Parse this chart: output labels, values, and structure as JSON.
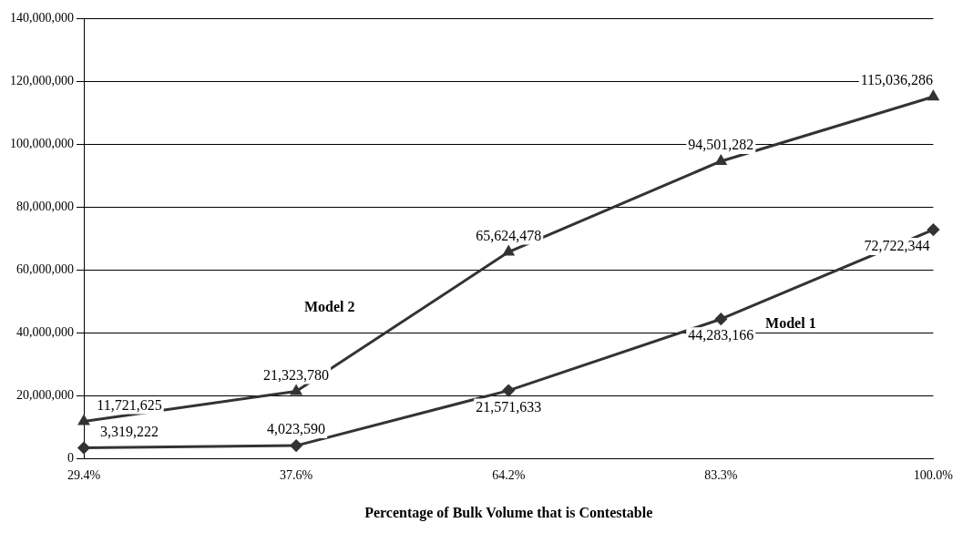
{
  "chart_data": {
    "type": "line",
    "xlabel": "Percentage of Bulk Volume that is Contestable",
    "categories": [
      "29.4%",
      "37.6%",
      "64.2%",
      "83.3%",
      "100.0%"
    ],
    "series": [
      {
        "name": "Model 1",
        "color": "#333333",
        "marker": "diamond",
        "values": [
          3319222,
          4023590,
          21571633,
          44283166,
          72722344
        ],
        "value_labels": [
          "3,319,222",
          "4,023,590",
          "21,571,633",
          "44,283,166",
          "72,722,344"
        ]
      },
      {
        "name": "Model 2",
        "color": "#333333",
        "marker": "triangle",
        "values": [
          11721625,
          21323780,
          65624478,
          94501282,
          115036286
        ],
        "value_labels": [
          "11,721,625",
          "21,323,780",
          "65,624,478",
          "94,501,282",
          "115,036,286"
        ]
      }
    ],
    "ylim": [
      0,
      140000000
    ],
    "yticks": [
      0,
      {
        "value": 20000000,
        "label": "20,000,000"
      },
      {
        "value": 40000000,
        "label": "40,000,000"
      },
      {
        "value": 60000000,
        "label": "60,000,000"
      },
      {
        "value": 80000000,
        "label": "80,000,000"
      },
      {
        "value": 100000000,
        "label": "100,000,000"
      },
      {
        "value": 120000000,
        "label": "120,000,000"
      },
      {
        "value": 140000000,
        "label": "140,000,000"
      }
    ],
    "grid": "y",
    "legend": false,
    "line_style": "solid"
  }
}
